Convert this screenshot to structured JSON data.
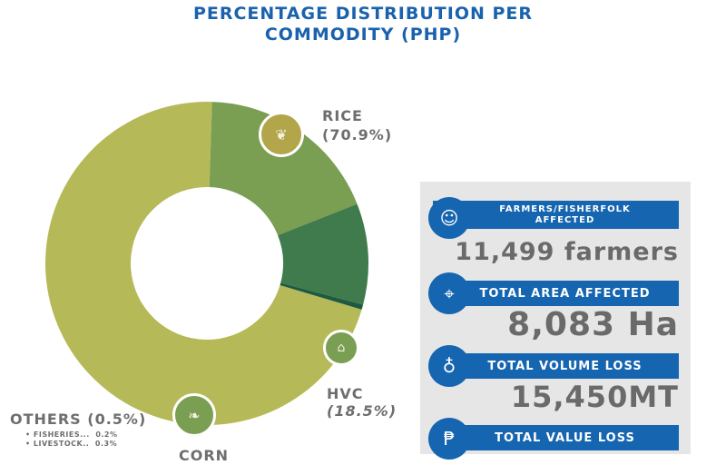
{
  "title": {
    "line1": "PERCENTAGE DISTRIBUTION PER",
    "line2": "COMMODITY (PHP)"
  },
  "chart_data": {
    "type": "pie",
    "variant": "donut",
    "title": "PERCENTAGE DISTRIBUTION PER COMMODITY (PHP)",
    "categories": [
      "RICE",
      "HVC",
      "CORN",
      "OTHERS"
    ],
    "values": [
      70.9,
      18.5,
      10.1,
      0.5
    ],
    "colors": [
      "#b6b957",
      "#7a9e52",
      "#3f7b4c",
      "#1d5a40"
    ],
    "labels": {
      "rice": "RICE",
      "rice_pct": "(70.9%)",
      "hvc": "HVC",
      "hvc_pct": "(18.5%)",
      "corn": "CORN",
      "others": "OTHERS (0.5%)"
    },
    "others_breakdown": [
      {
        "label": "FISHERIES...",
        "value": "0.2%"
      },
      {
        "label": "LIVESTOCK..",
        "value": "0.3%"
      }
    ]
  },
  "stats": [
    {
      "label1": "FARMERS/FISHERFOLK",
      "label2": "AFFECTED",
      "value": "11,499 farmers",
      "icon": "farmer-icon"
    },
    {
      "label1": "TOTAL AREA AFFECTED",
      "value": "8,083 Ha",
      "icon": "map-icon"
    },
    {
      "label1": "TOTAL VOLUME LOSS",
      "value": "15,450MT",
      "icon": "sack-icon"
    },
    {
      "label1": "TOTAL VALUE LOSS",
      "icon": "peso-icon"
    }
  ]
}
